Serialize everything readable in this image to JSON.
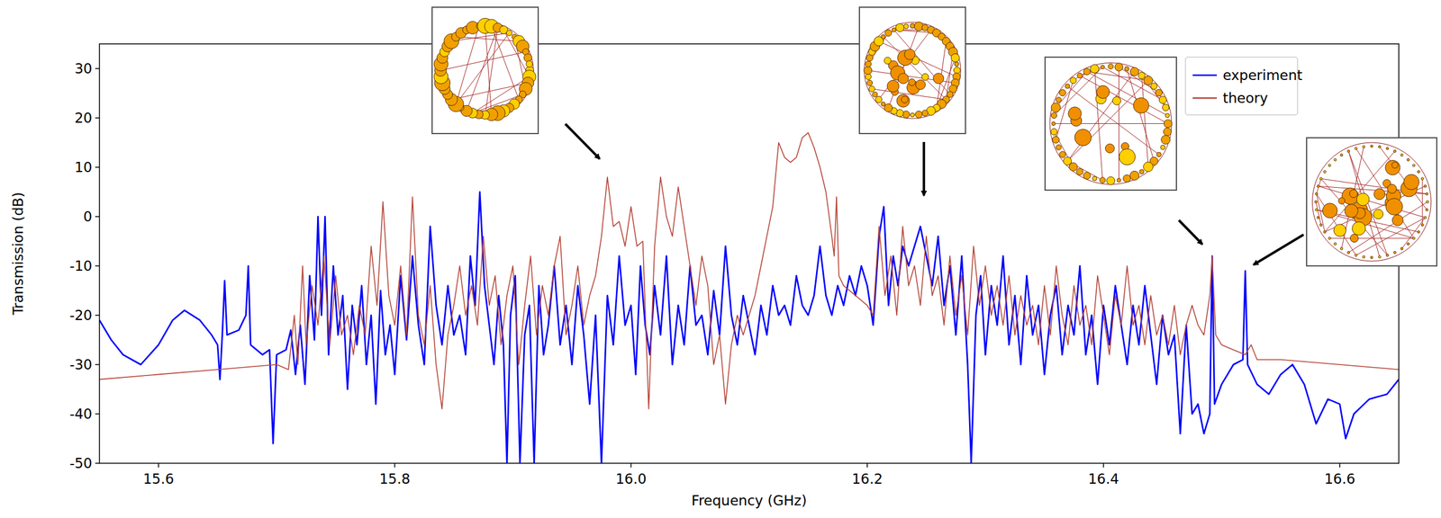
{
  "chart_data": {
    "type": "line",
    "x_label": "Frequency (GHz)",
    "y_label": "Transmission (dB)",
    "xlim": [
      15.55,
      16.65
    ],
    "ylim": [
      -50,
      35
    ],
    "xticks": [
      15.6,
      15.8,
      {
        "value": 16,
        "label": "16.0"
      },
      16.2,
      16.4,
      16.6
    ],
    "yticks": [
      -50,
      -40,
      -30,
      -20,
      -10,
      0,
      10,
      20,
      30
    ],
    "legend": "upper right",
    "grid": false,
    "series": [
      {
        "name": "experiment",
        "color": "#0000ff",
        "x": [
          15.55,
          15.56,
          15.57,
          15.585,
          15.6,
          15.612,
          15.622,
          15.635,
          15.645,
          15.65,
          15.652,
          15.654,
          15.656,
          15.658,
          15.668,
          15.674,
          15.676,
          15.678,
          15.688,
          15.694,
          15.697,
          15.7,
          15.708,
          15.712,
          15.716,
          15.72,
          15.724,
          15.728,
          15.732,
          15.735,
          15.738,
          15.741,
          15.744,
          15.748,
          15.752,
          15.756,
          15.76,
          15.764,
          15.768,
          15.772,
          15.776,
          15.78,
          15.784,
          15.788,
          15.792,
          15.796,
          15.8,
          15.805,
          15.81,
          15.815,
          15.82,
          15.825,
          15.83,
          15.835,
          15.84,
          15.845,
          15.85,
          15.855,
          15.86,
          15.864,
          15.868,
          15.872,
          15.876,
          15.88,
          15.884,
          15.888,
          15.892,
          15.895,
          15.898,
          15.902,
          15.906,
          15.91,
          15.914,
          15.918,
          15.922,
          15.926,
          15.93,
          15.935,
          15.94,
          15.945,
          15.95,
          15.955,
          15.96,
          15.965,
          15.97,
          15.975,
          15.98,
          15.985,
          15.99,
          15.995,
          16.0,
          16.004,
          16.008,
          16.012,
          16.016,
          16.02,
          16.025,
          16.03,
          16.035,
          16.04,
          16.045,
          16.05,
          16.055,
          16.06,
          16.065,
          16.07,
          16.075,
          16.08,
          16.085,
          16.09,
          16.095,
          16.1,
          16.105,
          16.11,
          16.115,
          16.12,
          16.125,
          16.13,
          16.135,
          16.14,
          16.145,
          16.15,
          16.155,
          16.16,
          16.165,
          16.17,
          16.175,
          16.18,
          16.185,
          16.19,
          16.195,
          16.2,
          16.205,
          16.21,
          16.214,
          16.218,
          16.222,
          16.226,
          16.23,
          16.235,
          16.24,
          16.245,
          16.25,
          16.255,
          16.26,
          16.265,
          16.27,
          16.275,
          16.28,
          16.285,
          16.288,
          16.292,
          16.296,
          16.3,
          16.305,
          16.31,
          16.315,
          16.32,
          16.325,
          16.33,
          16.335,
          16.34,
          16.345,
          16.35,
          16.355,
          16.36,
          16.365,
          16.37,
          16.375,
          16.38,
          16.385,
          16.39,
          16.395,
          16.4,
          16.405,
          16.41,
          16.415,
          16.42,
          16.425,
          16.43,
          16.435,
          16.44,
          16.445,
          16.45,
          16.455,
          16.46,
          16.465,
          16.47,
          16.475,
          16.48,
          16.485,
          16.49,
          16.492,
          16.494,
          16.5,
          16.51,
          16.518,
          16.52,
          16.522,
          16.53,
          16.54,
          16.55,
          16.56,
          16.57,
          16.58,
          16.59,
          16.6,
          16.605,
          16.612,
          16.625,
          16.64,
          16.65
        ],
        "values": [
          -21,
          -25,
          -28,
          -30,
          -26,
          -21,
          -19,
          -21,
          -24,
          -26,
          -33,
          -24,
          -13,
          -24,
          -23,
          -20,
          -10,
          -26,
          -28,
          -27,
          -46,
          -28,
          -27,
          -23,
          -32,
          -22,
          -34,
          -12,
          -25,
          0,
          -20,
          0,
          -28,
          -10,
          -24,
          -16,
          -35,
          -18,
          -26,
          -14,
          -30,
          -20,
          -38,
          -15,
          -28,
          -22,
          -32,
          -12,
          -25,
          -8,
          -22,
          -30,
          -2,
          -18,
          -26,
          -14,
          -24,
          -20,
          -28,
          -8,
          -18,
          5,
          -14,
          -22,
          -30,
          -16,
          -26,
          -50,
          -20,
          -12,
          -50,
          -24,
          -18,
          -50,
          -14,
          -28,
          -22,
          -10,
          -26,
          -18,
          -30,
          -14,
          -24,
          -38,
          -20,
          -50,
          -16,
          -26,
          -8,
          -22,
          -18,
          -32,
          -10,
          -22,
          -28,
          -14,
          -24,
          -8,
          -30,
          -18,
          -26,
          -10,
          -22,
          -20,
          -28,
          -15,
          -24,
          -6,
          -20,
          -26,
          -16,
          -22,
          -28,
          -18,
          -24,
          -14,
          -20,
          -18,
          -22,
          -12,
          -18,
          -20,
          -16,
          -6,
          -16,
          -20,
          -14,
          -18,
          -12,
          -16,
          -10,
          -14,
          -22,
          -4,
          2,
          -18,
          -8,
          -14,
          -6,
          -10,
          -6,
          -2,
          -8,
          -14,
          -4,
          -18,
          -10,
          -24,
          -8,
          -30,
          -50,
          -20,
          -12,
          -28,
          -14,
          -22,
          -8,
          -26,
          -16,
          -30,
          -12,
          -24,
          -18,
          -32,
          -20,
          -14,
          -28,
          -18,
          -24,
          -10,
          -28,
          -20,
          -34,
          -18,
          -26,
          -14,
          -22,
          -30,
          -18,
          -26,
          -14,
          -24,
          -34,
          -20,
          -28,
          -24,
          -44,
          -22,
          -40,
          -38,
          -44,
          -40,
          -8,
          -38,
          -34,
          -30,
          -29,
          -11,
          -30,
          -34,
          -36,
          -32,
          -30,
          -34,
          -42,
          -37,
          -38,
          -45,
          -40,
          -37,
          -36,
          -33
        ]
      },
      {
        "name": "theory",
        "color": "#b5473a",
        "x": [
          15.55,
          15.6,
          15.65,
          15.7,
          15.71,
          15.715,
          15.718,
          15.722,
          15.725,
          15.73,
          15.735,
          15.74,
          15.745,
          15.75,
          15.755,
          15.76,
          15.765,
          15.77,
          15.775,
          15.78,
          15.785,
          15.79,
          15.795,
          15.8,
          15.805,
          15.81,
          15.815,
          15.82,
          15.825,
          15.83,
          15.835,
          15.84,
          15.845,
          15.85,
          15.855,
          15.86,
          15.865,
          15.87,
          15.875,
          15.88,
          15.885,
          15.89,
          15.895,
          15.9,
          15.905,
          15.91,
          15.915,
          15.92,
          15.925,
          15.93,
          15.935,
          15.94,
          15.945,
          15.95,
          15.955,
          15.96,
          15.965,
          15.97,
          15.975,
          15.98,
          15.985,
          15.99,
          15.995,
          16.0,
          16.005,
          16.01,
          16.015,
          16.02,
          16.025,
          16.03,
          16.035,
          16.04,
          16.045,
          16.05,
          16.055,
          16.06,
          16.065,
          16.07,
          16.075,
          16.08,
          16.085,
          16.09,
          16.095,
          16.1,
          16.105,
          16.11,
          16.115,
          16.12,
          16.125,
          16.13,
          16.135,
          16.14,
          16.145,
          16.15,
          16.155,
          16.16,
          16.165,
          16.17,
          16.172,
          16.174,
          16.176,
          16.18,
          16.19,
          16.2,
          16.205,
          16.21,
          16.215,
          16.22,
          16.225,
          16.23,
          16.235,
          16.24,
          16.245,
          16.25,
          16.255,
          16.26,
          16.265,
          16.27,
          16.275,
          16.28,
          16.285,
          16.29,
          16.295,
          16.3,
          16.305,
          16.31,
          16.315,
          16.32,
          16.325,
          16.33,
          16.335,
          16.34,
          16.345,
          16.35,
          16.355,
          16.36,
          16.365,
          16.37,
          16.375,
          16.38,
          16.385,
          16.39,
          16.395,
          16.4,
          16.405,
          16.41,
          16.415,
          16.42,
          16.425,
          16.43,
          16.435,
          16.44,
          16.445,
          16.45,
          16.455,
          16.46,
          16.465,
          16.47,
          16.475,
          16.48,
          16.485,
          16.49,
          16.492,
          16.495,
          16.5,
          16.51,
          16.52,
          16.525,
          16.53,
          16.55,
          16.6,
          16.65
        ],
        "values": [
          -33,
          -32,
          -31,
          -30,
          -31,
          -20,
          -30,
          -10,
          -26,
          -14,
          -22,
          -8,
          -26,
          -12,
          -24,
          -20,
          -28,
          -18,
          -24,
          -6,
          -18,
          3,
          -16,
          -22,
          -10,
          -24,
          4,
          -20,
          -26,
          -14,
          -30,
          -39,
          -24,
          -18,
          -10,
          -20,
          -14,
          -22,
          -4,
          -18,
          -12,
          -26,
          -16,
          -10,
          -30,
          -18,
          -8,
          -24,
          -14,
          -20,
          -10,
          -4,
          -24,
          -18,
          -10,
          -22,
          -16,
          -12,
          -4,
          8,
          -2,
          -1,
          -6,
          2,
          -6,
          -5,
          -39,
          -6,
          8,
          0,
          -4,
          6,
          -2,
          -10,
          -18,
          -8,
          -14,
          -30,
          -24,
          -38,
          -26,
          -20,
          -24,
          -20,
          -16,
          -10,
          -4,
          2,
          15,
          12,
          11,
          12,
          16,
          17,
          14,
          10,
          5,
          -4,
          -8,
          4,
          -12,
          -14,
          -16,
          -18,
          -20,
          -2,
          -16,
          -8,
          -20,
          -2,
          -14,
          -10,
          -18,
          -4,
          -16,
          -12,
          -22,
          -8,
          -20,
          -12,
          -24,
          -6,
          -18,
          -10,
          -20,
          -14,
          -22,
          -12,
          -24,
          -16,
          -22,
          -18,
          -26,
          -14,
          -24,
          -10,
          -20,
          -26,
          -14,
          -22,
          -18,
          -26,
          -12,
          -20,
          -28,
          -16,
          -22,
          -10,
          -22,
          -18,
          -26,
          -16,
          -24,
          -20,
          -26,
          -18,
          -28,
          -22,
          -18,
          -22,
          -24,
          -16,
          -8,
          -24,
          -26,
          -27,
          -28,
          -26,
          -29,
          -29,
          -30,
          -31
        ]
      }
    ]
  }
}
